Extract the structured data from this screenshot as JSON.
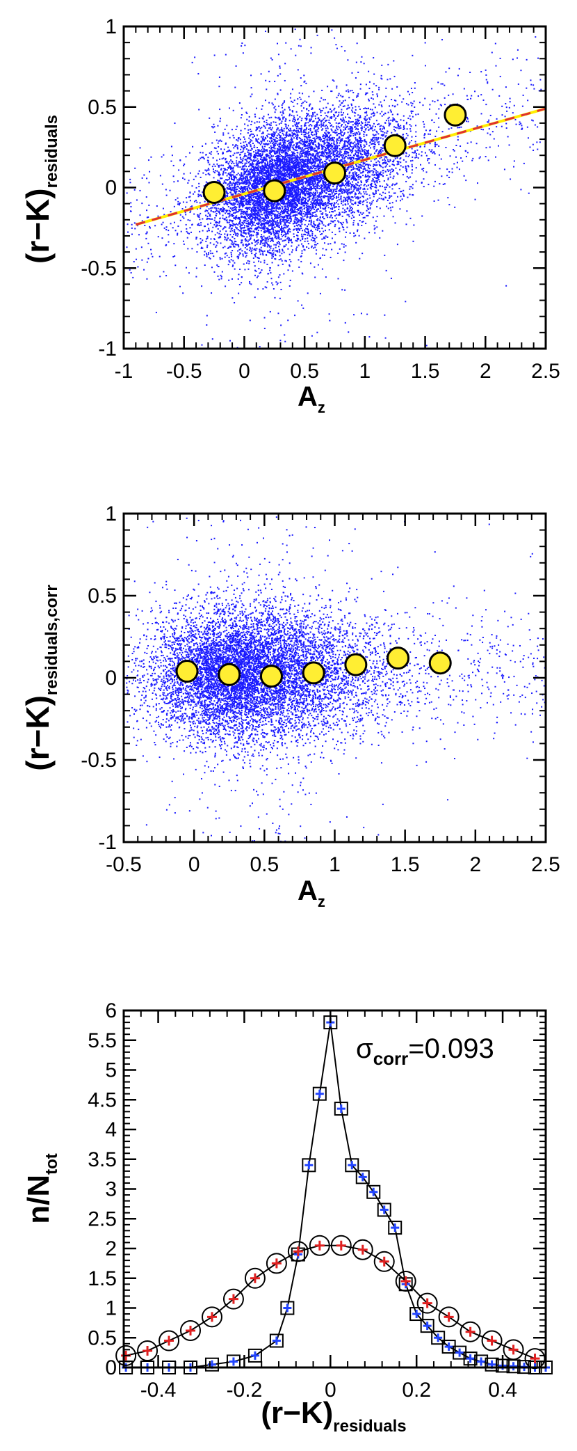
{
  "chart_data": [
    {
      "type": "scatter",
      "xlim": [
        -1,
        2.5
      ],
      "ylim": [
        -1,
        1
      ],
      "xticks": [
        "-1",
        "-0.5",
        "0",
        "0.5",
        "1",
        "1.5",
        "2",
        "2.5"
      ],
      "yticks": [
        "1",
        "0.5",
        "0",
        "-0.5",
        "-1"
      ],
      "xlabel_main": "A",
      "xlabel_sub": "z",
      "ylabel_main": "(r−K)",
      "ylabel_sub": "residuals",
      "binned_means": {
        "x": [
          -0.25,
          0.25,
          0.75,
          1.25,
          1.75
        ],
        "y": [
          -0.03,
          -0.02,
          0.09,
          0.26,
          0.45
        ]
      },
      "fit_line": {
        "x": [
          -0.9,
          2.5
        ],
        "y": [
          -0.23,
          0.49
        ]
      },
      "scatter_colors": {
        "points": "#1a1aff",
        "markers": "#ffee33",
        "fit_red": "#e03030",
        "fit_yellow": "#ffee00"
      },
      "grid": false
    },
    {
      "type": "scatter",
      "xlim": [
        -0.5,
        2.5
      ],
      "ylim": [
        -1,
        1
      ],
      "xticks": [
        "-0.5",
        "0",
        "0.5",
        "1",
        "1.5",
        "2",
        "2.5"
      ],
      "yticks": [
        "1",
        "0.5",
        "0",
        "-0.5",
        "-1"
      ],
      "xlabel_main": "A",
      "xlabel_sub": "z",
      "ylabel_main": "(r−K)",
      "ylabel_sub": "residuals,corr",
      "binned_means": {
        "x": [
          -0.05,
          0.25,
          0.55,
          0.85,
          1.15,
          1.45,
          1.75
        ],
        "y": [
          0.04,
          0.02,
          0.01,
          0.03,
          0.08,
          0.12,
          0.09
        ]
      },
      "grid": false
    },
    {
      "type": "line",
      "xlim": [
        -0.48,
        0.5
      ],
      "ylim": [
        0,
        6
      ],
      "xticks": [
        "-0.4",
        "-0.2",
        "0",
        "0.2",
        "0.4"
      ],
      "yticks": [
        "6",
        "5.5",
        "5",
        "4.5",
        "4",
        "3.5",
        "3",
        "2.5",
        "2",
        "1.5",
        "1",
        "0.5",
        "0"
      ],
      "xlabel_main": "(r−K)",
      "xlabel_sub": "residuals",
      "ylabel_main": "n/N",
      "ylabel_sub": "tot",
      "annotation": {
        "sigma": "σ",
        "sub": "corr",
        "value": "=0.093"
      },
      "series": [
        {
          "marker": "square-with-blue-plus",
          "x": [
            -0.475,
            -0.425,
            -0.375,
            -0.325,
            -0.275,
            -0.225,
            -0.175,
            -0.125,
            -0.1,
            -0.075,
            -0.05,
            -0.025,
            0,
            0.025,
            0.05,
            0.075,
            0.1,
            0.125,
            0.15,
            0.175,
            0.2,
            0.225,
            0.25,
            0.275,
            0.3,
            0.325,
            0.35,
            0.375,
            0.4,
            0.425,
            0.45,
            0.475,
            0.5
          ],
          "y": [
            0,
            0,
            0,
            0,
            0.05,
            0.1,
            0.2,
            0.45,
            1.0,
            1.9,
            3.4,
            4.6,
            5.8,
            4.35,
            3.4,
            3.2,
            2.95,
            2.65,
            2.35,
            1.4,
            0.9,
            0.7,
            0.5,
            0.35,
            0.25,
            0.15,
            0.1,
            0.05,
            0.03,
            0.02,
            0.01,
            0,
            0
          ]
        },
        {
          "marker": "circle-with-red-plus",
          "x": [
            -0.475,
            -0.425,
            -0.375,
            -0.325,
            -0.275,
            -0.225,
            -0.175,
            -0.125,
            -0.075,
            -0.025,
            0.025,
            0.075,
            0.125,
            0.175,
            0.225,
            0.275,
            0.325,
            0.375,
            0.425,
            0.475
          ],
          "y": [
            0.2,
            0.28,
            0.45,
            0.62,
            0.85,
            1.15,
            1.5,
            1.75,
            1.95,
            2.05,
            2.05,
            1.98,
            1.78,
            1.45,
            1.08,
            0.85,
            0.6,
            0.45,
            0.3,
            0.15
          ]
        }
      ],
      "grid": false
    }
  ]
}
